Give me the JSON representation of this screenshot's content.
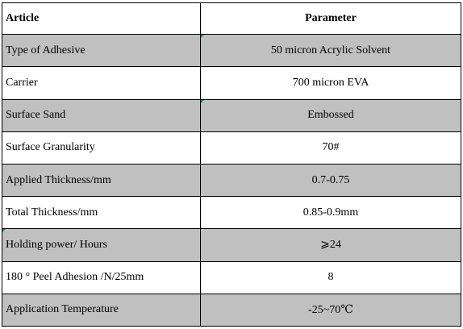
{
  "table": {
    "headers": {
      "article": "Article",
      "parameter": "Parameter"
    },
    "rows": [
      {
        "article": "Type of Adhesive",
        "parameter": "50 micron Acrylic Solvent",
        "shaded": true
      },
      {
        "article": "Carrier",
        "parameter": "700 micron EVA",
        "shaded": false
      },
      {
        "article": "Surface Sand",
        "parameter": "Embossed",
        "shaded": true
      },
      {
        "article": "Surface Granularity",
        "parameter": "70#",
        "shaded": false
      },
      {
        "article": "Applied Thickness/mm",
        "parameter": "0.7-0.75",
        "shaded": true
      },
      {
        "article": "Total Thickness/mm",
        "parameter": "0.85-0.9mm",
        "shaded": false
      },
      {
        "article": "Holding power/ Hours",
        "parameter": "⩾24",
        "shaded": true
      },
      {
        "article": "180 ° Peel Adhesion /N/25mm",
        "parameter": "8",
        "shaded": false
      },
      {
        "article": "Application Temperature",
        "parameter": "-25~70℃",
        "shaded": true
      }
    ]
  },
  "colors": {
    "shaded_row": "#c0c0c0",
    "border": "#000000",
    "marker": "#1e8f3a"
  }
}
